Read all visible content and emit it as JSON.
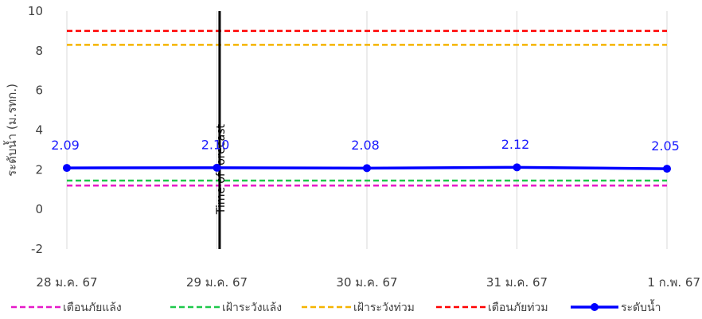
{
  "chart_data": {
    "type": "line",
    "title": "",
    "ylabel": "ระดับน้ำ (ม.รทก.)",
    "xlabel": "",
    "categories": [
      "28 ม.ค. 67",
      "29 ม.ค. 67",
      "30 ม.ค. 67",
      "31 ม.ค. 67",
      "1 ก.พ. 67"
    ],
    "ylim": [
      -2,
      10
    ],
    "yticks": [
      -2,
      0,
      2,
      4,
      6,
      8,
      10
    ],
    "grid": "vertical",
    "legend_position": "bottom",
    "series": [
      {
        "name": "ระดับน้ำ",
        "values": [
          2.09,
          2.1,
          2.08,
          2.12,
          2.05
        ],
        "labels": [
          "2.09",
          "2.10",
          "2.08",
          "2.12",
          "2.05"
        ],
        "color": "#0000ff"
      }
    ],
    "thresholds": [
      {
        "name": "เตือนภัยแล้ง",
        "value": 1.2,
        "color": "#e619c8"
      },
      {
        "name": "เฝ้าระวังแล้ง",
        "value": 1.45,
        "color": "#1ec84b"
      },
      {
        "name": "เฝ้าระวังท่วม",
        "value": 8.3,
        "color": "#f5b400"
      },
      {
        "name": "เตือนภัยท่วม",
        "value": 9.0,
        "color": "#ff0000"
      }
    ],
    "marker": {
      "label": "Time of forecast",
      "x_index": 1.05,
      "color": "#000000"
    }
  }
}
